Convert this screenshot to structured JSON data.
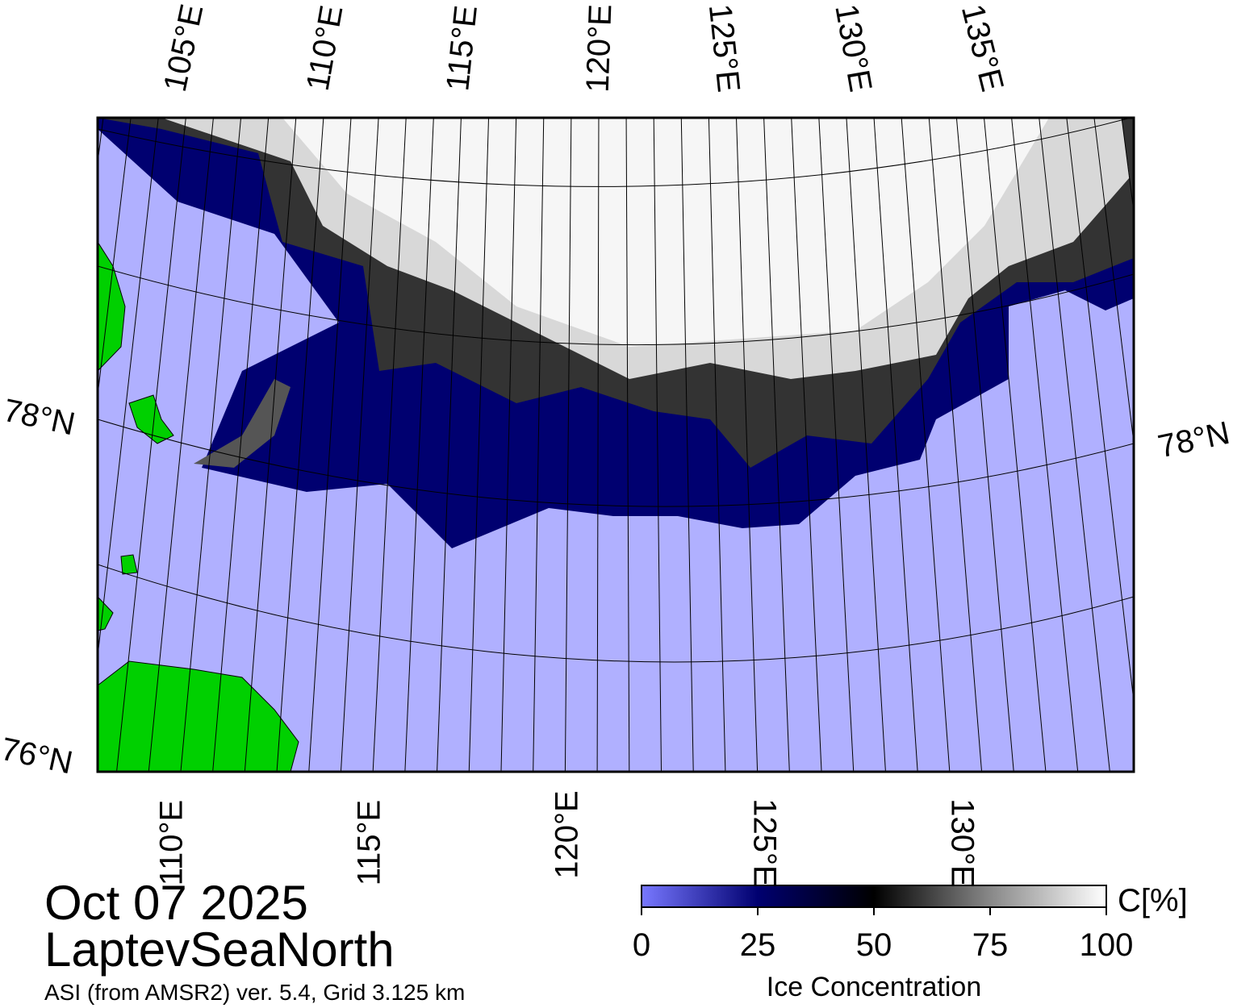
{
  "map": {
    "region": "LaptevSeaNorth",
    "date": "Oct 07 2025",
    "source": "ASI (from AMSR2) ver. 5.4,  Grid 3.125 km",
    "top_labels": [
      "105°E",
      "110°E",
      "115°E",
      "120°E",
      "125°E",
      "130°E",
      "135°E"
    ],
    "bottom_labels": [
      "110°E",
      "115°E",
      "120°E",
      "125°E",
      "130°E"
    ],
    "left_labels": [
      "78°N",
      "76°N"
    ],
    "right_labels": [
      "78°N"
    ]
  },
  "colorbar": {
    "label": "Ice Concentration",
    "unit": "C[%]",
    "lim": [
      0,
      100
    ],
    "ticks": [
      0,
      25,
      50,
      75,
      100
    ]
  }
}
